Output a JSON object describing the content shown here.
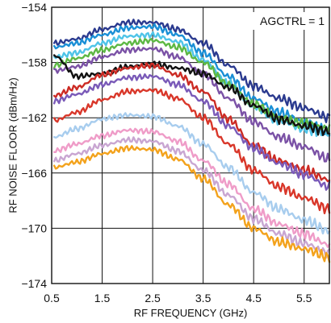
{
  "chart_data": {
    "type": "line",
    "title": "",
    "xlabel": "RF FREQUENCY (GHz)",
    "ylabel": "RF NOISE FLOOR (dBm/Hz)",
    "xlim": [
      0.5,
      6.0
    ],
    "ylim": [
      -174,
      -154
    ],
    "x_ticks": [
      0.5,
      1.5,
      2.5,
      3.5,
      4.5,
      5.5
    ],
    "x_tick_labels": [
      "0.5",
      "1.5",
      "2.5",
      "3.5",
      "4.5",
      "5.5"
    ],
    "y_ticks": [
      -154,
      -158,
      -162,
      -166,
      -170,
      -174
    ],
    "y_tick_labels": [
      "−154",
      "−158",
      "−162",
      "−166",
      "−170",
      "−174"
    ],
    "grid": true,
    "annotation": "AGCTRL = 1",
    "x": [
      0.55,
      1.0,
      1.5,
      2.0,
      2.5,
      3.0,
      3.5,
      4.0,
      4.5,
      5.0,
      5.5,
      6.0
    ],
    "series": [
      {
        "color": "#2b3a8f",
        "values": [
          -156.6,
          -156.3,
          -155.6,
          -155.1,
          -155.1,
          -155.6,
          -156.6,
          -158.2,
          -159.7,
          -160.6,
          -161.3,
          -162.0
        ]
      },
      {
        "color": "#1a8fd6",
        "values": [
          -156.9,
          -156.6,
          -156.0,
          -155.5,
          -155.4,
          -156.0,
          -157.3,
          -159.0,
          -160.6,
          -161.6,
          -162.3,
          -163.0
        ]
      },
      {
        "color": "#4fc4e8",
        "values": [
          -157.6,
          -157.3,
          -156.6,
          -156.1,
          -156.0,
          -156.5,
          -157.8,
          -159.5,
          -161.2,
          -162.2,
          -162.8,
          -163.2
        ]
      },
      {
        "color": "#5db844",
        "values": [
          -158.2,
          -157.7,
          -157.1,
          -156.6,
          -156.4,
          -156.9,
          -158.0,
          -159.6,
          -161.0,
          -162.0,
          -162.4,
          -162.8
        ]
      },
      {
        "color": "#7b52a6",
        "values": [
          -158.6,
          -158.3,
          -157.6,
          -157.1,
          -157.0,
          -157.6,
          -158.8,
          -160.6,
          -162.3,
          -163.4,
          -164.1,
          -165.0
        ]
      },
      {
        "color": "#111111",
        "values": [
          -157.5,
          -159.0,
          -158.8,
          -158.3,
          -158.1,
          -158.4,
          -158.8,
          -159.8,
          -161.1,
          -162.1,
          -162.6,
          -163.0
        ]
      },
      {
        "color": "#cc2b24",
        "values": [
          -160.4,
          -159.8,
          -158.9,
          -158.4,
          -158.2,
          -158.9,
          -160.1,
          -162.1,
          -164.0,
          -165.1,
          -165.8,
          -166.5
        ]
      },
      {
        "color": "#7a5ab8",
        "values": [
          -160.8,
          -160.3,
          -159.6,
          -159.1,
          -159.0,
          -159.6,
          -160.8,
          -162.6,
          -164.2,
          -165.3,
          -166.1,
          -167.0
        ]
      },
      {
        "color": "#d9372a",
        "values": [
          -162.2,
          -161.6,
          -160.7,
          -160.1,
          -160.0,
          -160.6,
          -162.0,
          -163.9,
          -165.8,
          -167.0,
          -167.8,
          -168.6
        ]
      },
      {
        "color": "#a8cdee",
        "values": [
          -163.4,
          -162.8,
          -162.1,
          -161.8,
          -161.9,
          -162.6,
          -163.9,
          -165.6,
          -167.4,
          -168.6,
          -169.4,
          -170.2
        ]
      },
      {
        "color": "#ef9cc8",
        "values": [
          -164.4,
          -163.9,
          -163.3,
          -162.9,
          -163.0,
          -163.7,
          -165.1,
          -166.8,
          -168.6,
          -169.7,
          -170.4,
          -171.2
        ]
      },
      {
        "color": "#c9a6d2",
        "values": [
          -165.1,
          -164.6,
          -164.0,
          -163.6,
          -163.7,
          -164.4,
          -165.8,
          -167.6,
          -169.3,
          -170.4,
          -171.1,
          -171.8
        ]
      },
      {
        "color": "#f3a21c",
        "values": [
          -165.6,
          -165.2,
          -164.6,
          -164.2,
          -164.3,
          -165.0,
          -166.4,
          -168.3,
          -170.0,
          -171.0,
          -171.5,
          -172.1
        ]
      }
    ]
  }
}
